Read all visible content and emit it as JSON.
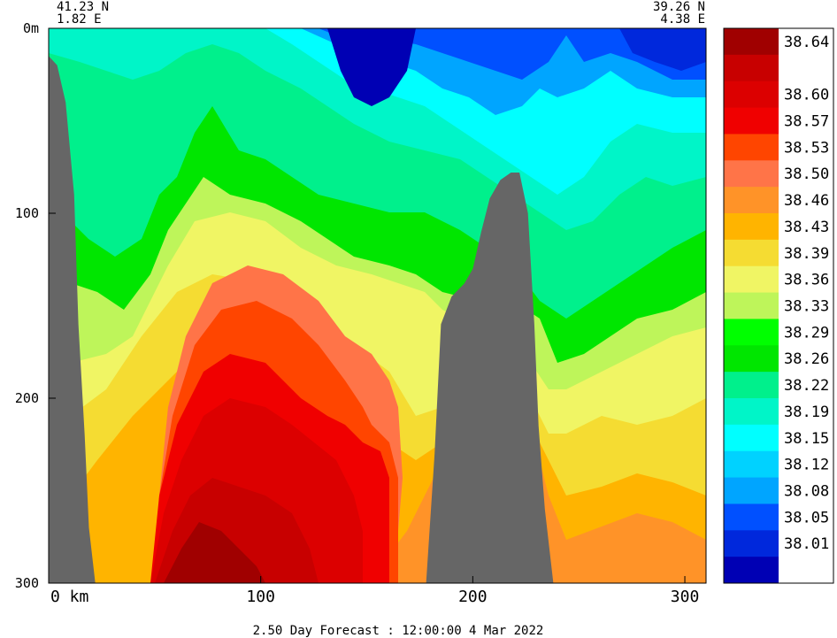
{
  "chart_data": {
    "type": "heatmap",
    "corner_labels": {
      "left_lat": "41.23 N",
      "left_lon": "1.82 E",
      "right_lat": "39.26 N",
      "right_lon": "4.38 E"
    },
    "x_axis": {
      "range": [
        0,
        310
      ],
      "ticks": [
        {
          "value": 0,
          "label": "0 km"
        },
        {
          "value": 100,
          "label": "100"
        },
        {
          "value": 200,
          "label": "200"
        },
        {
          "value": 300,
          "label": "300"
        }
      ]
    },
    "y_axis": {
      "range": [
        0,
        300
      ],
      "ticks": [
        {
          "value": 0,
          "label": "0m"
        },
        {
          "value": 100,
          "label": "100"
        },
        {
          "value": 200,
          "label": "200"
        },
        {
          "value": 300,
          "label": "300"
        }
      ]
    },
    "footer": "2.50 Day Forecast : 12:00:00   4 Mar 2022",
    "colorbar": {
      "levels": [
        {
          "label": "38.64",
          "color": "#a00000"
        },
        {
          "label": "",
          "color": "#c80000"
        },
        {
          "label": "38.60",
          "color": "#dc0000"
        },
        {
          "label": "38.57",
          "color": "#f00000"
        },
        {
          "label": "38.53",
          "color": "#ff4500"
        },
        {
          "label": "38.50",
          "color": "#ff7448"
        },
        {
          "label": "38.46",
          "color": "#ff9328"
        },
        {
          "label": "38.43",
          "color": "#ffb400"
        },
        {
          "label": "38.39",
          "color": "#f5dc32"
        },
        {
          "label": "38.36",
          "color": "#f0f564"
        },
        {
          "label": "38.33",
          "color": "#bef55a"
        },
        {
          "label": "38.29",
          "color": "#00ff00"
        },
        {
          "label": "38.26",
          "color": "#00e600"
        },
        {
          "label": "38.22",
          "color": "#00f08c"
        },
        {
          "label": "38.19",
          "color": "#00f5c8"
        },
        {
          "label": "38.15",
          "color": "#00ffff"
        },
        {
          "label": "38.12",
          "color": "#00d2ff"
        },
        {
          "label": "38.08",
          "color": "#00a5ff"
        },
        {
          "label": "38.05",
          "color": "#0050ff"
        },
        {
          "label": "38.01",
          "color": "#0028dc"
        },
        {
          "label": "",
          "color": "#0000b4"
        }
      ]
    },
    "bathymetry_profile": [
      [
        0,
        15
      ],
      [
        4,
        20
      ],
      [
        8,
        40
      ],
      [
        12,
        90
      ],
      [
        14,
        160
      ],
      [
        17,
        220
      ],
      [
        19,
        270
      ],
      [
        22,
        300
      ],
      [
        178,
        300
      ],
      [
        182,
        230
      ],
      [
        185,
        160
      ],
      [
        190,
        145
      ],
      [
        196,
        138
      ],
      [
        200,
        130
      ],
      [
        204,
        110
      ],
      [
        208,
        92
      ],
      [
        213,
        82
      ],
      [
        218,
        78
      ],
      [
        222,
        78
      ],
      [
        226,
        100
      ],
      [
        229,
        160
      ],
      [
        231,
        215
      ],
      [
        234,
        260
      ],
      [
        238,
        300
      ]
    ]
  }
}
